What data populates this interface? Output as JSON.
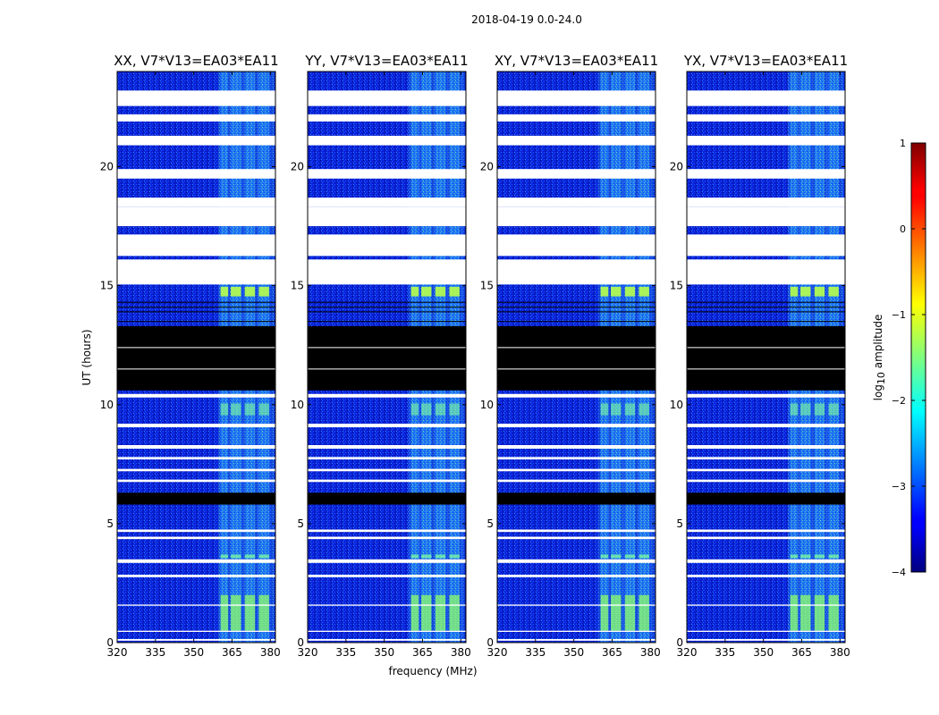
{
  "figure": {
    "suptitle": "2018-04-19 0.0-24.0"
  },
  "chart_data": {
    "type": "heatmap",
    "xlabel": "frequency (MHz)",
    "ylabel": "UT (hours)",
    "xlim": [
      320,
      382
    ],
    "ylim": [
      0,
      24
    ],
    "xticks": [
      320,
      335,
      350,
      365,
      380
    ],
    "yticks": [
      0,
      5,
      10,
      15,
      20
    ],
    "panels": [
      {
        "title": "XX, V7*V13=EA03*EA11",
        "polarization": "XX"
      },
      {
        "title": "YY, V7*V13=EA03*EA11",
        "polarization": "YY"
      },
      {
        "title": "XY, V7*V13=EA03*EA11",
        "polarization": "XY"
      },
      {
        "title": "YX, V7*V13=EA03*EA11",
        "polarization": "YX"
      }
    ],
    "colorbar": {
      "label": "log10 amplitude",
      "label_main": "log",
      "label_sub": "10",
      "label_rest": " amplitude",
      "vmin": -4,
      "vmax": 1,
      "ticks": [
        1,
        0,
        -1,
        -2,
        -3,
        -4
      ],
      "colormap": "jet"
    },
    "background_level": -3.3,
    "rfi_band_mhz": [
      359.5,
      381.5
    ],
    "rfi_channels_mhz": [
      [
        360.5,
        363.5
      ],
      [
        364.5,
        368.5
      ],
      [
        370,
        374
      ],
      [
        375.5,
        379.5
      ]
    ],
    "rfi_peak_level": -1.6,
    "masked_black_hours": [
      [
        10.6,
        13.3
      ],
      [
        5.8,
        6.3
      ]
    ],
    "gap_white_hours": [
      [
        22.55,
        23.2
      ],
      [
        21.9,
        22.2
      ],
      [
        20.9,
        21.3
      ],
      [
        19.5,
        19.9
      ],
      [
        18.3,
        18.7
      ],
      [
        17.5,
        18.3
      ],
      [
        16.25,
        17.15
      ],
      [
        15.05,
        16.1
      ],
      [
        10.3,
        10.45
      ],
      [
        9.05,
        9.2
      ],
      [
        8.15,
        8.3
      ],
      [
        7.7,
        7.8
      ],
      [
        7.2,
        7.3
      ],
      [
        6.75,
        6.85
      ],
      [
        4.65,
        4.75
      ],
      [
        4.35,
        4.45
      ],
      [
        3.35,
        3.5
      ],
      [
        2.75,
        2.85
      ],
      [
        1.55,
        1.6
      ],
      [
        0.45,
        0.5
      ],
      [
        0.08,
        0.15
      ]
    ]
  }
}
